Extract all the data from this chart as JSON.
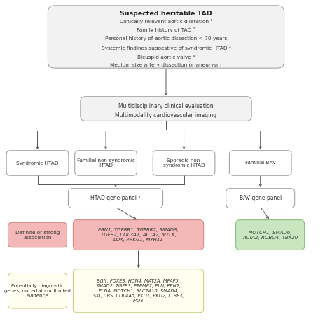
{
  "bg_color": "#ffffff",
  "top_box": {
    "title": "Suspected heritable TAD",
    "lines": [
      "Clinically relevant aortic dilatation ¹",
      "Family history of TAD ²",
      "Personal history of aortic dissection < 70 years",
      "Systemic findings suggestive of syndromic HTAD ³",
      "Bicuspid aortic valve ⁴",
      "Medium size artery dissection or aneurysm"
    ],
    "facecolor": "#f2f2f2",
    "edgecolor": "#999999"
  },
  "mid_box": {
    "lines": [
      "Multidisciplinary clinical evaluation",
      "Multimodality cardiovascular imaging"
    ],
    "facecolor": "#f2f2f2",
    "edgecolor": "#999999"
  },
  "branch_boxes": [
    {
      "label": "Syndromic HTAD",
      "facecolor": "#ffffff",
      "edgecolor": "#999999"
    },
    {
      "label": "Familial non-syndromic\nHTAD",
      "facecolor": "#ffffff",
      "edgecolor": "#999999"
    },
    {
      "label": "Sporadic non-\nsyndromic HTAD",
      "facecolor": "#ffffff",
      "edgecolor": "#999999"
    },
    {
      "label": "Familial BAV",
      "facecolor": "#ffffff",
      "edgecolor": "#999999"
    }
  ],
  "htad_panel_box": {
    "label": "HTAD gene panel ⁵",
    "facecolor": "#ffffff",
    "edgecolor": "#999999"
  },
  "bav_panel_box": {
    "label": "BAV gene panel",
    "facecolor": "#ffffff",
    "edgecolor": "#999999"
  },
  "htad_strong_box": {
    "text": "FBN1, TGFBR1, TGFBR2, SMAD3,\nTGFB2, COL3A1, ACTA2, MYLK,\nLOX, PRKG1, MYH11",
    "facecolor": "#f4b8b8",
    "edgecolor": "#d08080"
  },
  "htad_potential_box": {
    "text": "BGN, FOXE3, HCN4, MAT2A, MFAP5,\nSMAD2, TGFB3, EFEMP2, ELN, FBN2,\nFLNA, NOTCH1, SLC2A10, SMAD4,\nSKI, CBS, COL4A5, PKD1, PKD2, LTBP3,\nIPO8",
    "facecolor": "#fffff0",
    "edgecolor": "#c8c870"
  },
  "bav_strong_box": {
    "text": "NOTCH1, SMAD6,\nACTA2, ROBO4, TBX20",
    "facecolor": "#c8e6c0",
    "edgecolor": "#80b870"
  },
  "label_strong": {
    "text": "Definite or strong\nassociation",
    "facecolor": "#f4b8b8",
    "edgecolor": "#d08080"
  },
  "label_potential": {
    "text": "Potentially diagnostic\ngenes, uncertain or limited\nevidence",
    "facecolor": "#fffff0",
    "edgecolor": "#c8c870"
  },
  "arrow_color": "#555555",
  "line_color": "#555555"
}
